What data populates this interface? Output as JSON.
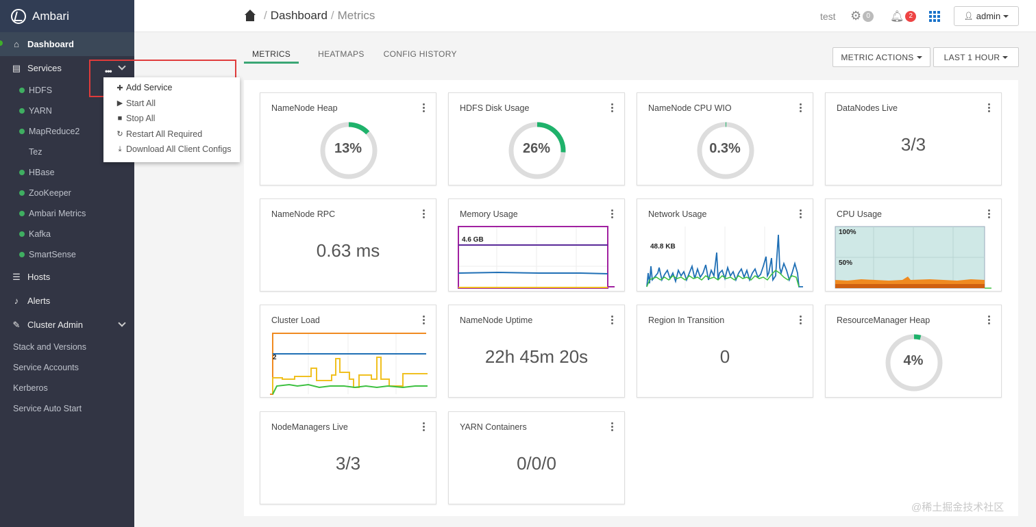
{
  "brand": {
    "name": "Ambari"
  },
  "sidebar": {
    "dashboard": "Dashboard",
    "services": "Services",
    "services_more": "•••",
    "service_items": [
      {
        "label": "HDFS",
        "status": "green"
      },
      {
        "label": "YARN",
        "status": "green"
      },
      {
        "label": "MapReduce2",
        "status": "green"
      },
      {
        "label": "Tez",
        "status": "none"
      },
      {
        "label": "HBase",
        "status": "green"
      },
      {
        "label": "ZooKeeper",
        "status": "green"
      },
      {
        "label": "Ambari Metrics",
        "status": "green"
      },
      {
        "label": "Kafka",
        "status": "green"
      },
      {
        "label": "SmartSense",
        "status": "green"
      }
    ],
    "hosts": "Hosts",
    "alerts": "Alerts",
    "cluster_admin": "Cluster Admin",
    "cluster_admin_items": [
      "Stack and Versions",
      "Service Accounts",
      "Kerberos",
      "Service Auto Start"
    ]
  },
  "service_actions": {
    "add_service": "Add Service",
    "start_all": "Start All",
    "stop_all": "Stop All",
    "restart_all_required": "Restart All Required",
    "download_all_client_configs": "Download All Client Configs"
  },
  "header": {
    "breadcrumb_root": "Dashboard",
    "breadcrumb_current": "Metrics",
    "cluster_name": "test",
    "ops_count": "0",
    "alerts_count": "2",
    "user": "admin"
  },
  "tabs": [
    "METRICS",
    "HEATMAPS",
    "CONFIG HISTORY"
  ],
  "actions": {
    "metric_actions": "METRIC ACTIONS",
    "time_range": "LAST 1 HOUR"
  },
  "widgets": {
    "namenode_heap": {
      "title": "NameNode Heap",
      "value": "13%",
      "pct": 13
    },
    "hdfs_disk_usage": {
      "title": "HDFS Disk Usage",
      "value": "26%",
      "pct": 26
    },
    "namenode_cpu_wio": {
      "title": "NameNode CPU WIO",
      "value": "0.3%",
      "pct": 0.3
    },
    "datanodes_live": {
      "title": "DataNodes Live",
      "value": "3/3"
    },
    "namenode_rpc": {
      "title": "NameNode RPC",
      "value": "0.63 ms"
    },
    "memory_usage": {
      "title": "Memory Usage",
      "label": "4.6 GB"
    },
    "network_usage": {
      "title": "Network Usage",
      "label": "48.8 KB"
    },
    "cpu_usage": {
      "title": "CPU Usage",
      "label_top": "100%",
      "label_mid": "50%"
    },
    "cluster_load": {
      "title": "Cluster Load",
      "label": "2"
    },
    "namenode_uptime": {
      "title": "NameNode Uptime",
      "value": "22h 45m 20s"
    },
    "region_in_transition": {
      "title": "Region In Transition",
      "value": "0"
    },
    "resourcemanager_heap": {
      "title": "ResourceManager Heap",
      "value": "4%",
      "pct": 4
    },
    "nodemanagers_live": {
      "title": "NodeManagers Live",
      "value": "3/3"
    },
    "yarn_containers": {
      "title": "YARN Containers",
      "value": "0/0/0"
    }
  },
  "colors": {
    "sidebar_bg": "#323544",
    "accent_green": "#3aa675",
    "donut_fill": "#1fb26b",
    "alert_red": "#e44444",
    "highlight_red": "#e03b3b"
  },
  "watermark": "@稀土掘金技术社区"
}
